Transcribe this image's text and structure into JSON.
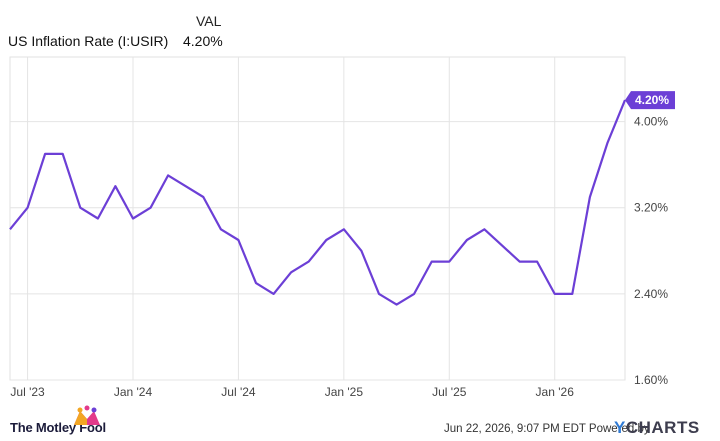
{
  "legend": {
    "column_header": "VAL",
    "series_name": "US Inflation Rate (I:USIR)",
    "series_value": "4.20%"
  },
  "chart_data": {
    "type": "line",
    "title": "",
    "xlabel": "",
    "ylabel": "",
    "x_tick_labels": [
      "Jul '23",
      "Jan '24",
      "Jul '24",
      "Jan '25",
      "Jul '25",
      "Jan '26"
    ],
    "y_tick_labels": [
      "1.60%",
      "2.40%",
      "3.20%",
      "4.00%"
    ],
    "y_ticks": [
      1.6,
      2.4,
      3.2,
      4.0
    ],
    "ylim": [
      1.6,
      4.6
    ],
    "grid": true,
    "axis_side": "right",
    "line_color": "#6c3fd6",
    "last_value_label": "4.20%",
    "series": [
      {
        "name": "US Inflation Rate (I:USIR)",
        "x": [
          "2023-06",
          "2023-07",
          "2023-08",
          "2023-09",
          "2023-10",
          "2023-11",
          "2023-12",
          "2024-01",
          "2024-02",
          "2024-03",
          "2024-04",
          "2024-05",
          "2024-06",
          "2024-07",
          "2024-08",
          "2024-09",
          "2024-10",
          "2024-11",
          "2024-12",
          "2025-01",
          "2025-02",
          "2025-03",
          "2025-04",
          "2025-05",
          "2025-06",
          "2025-07",
          "2025-08",
          "2025-09",
          "2025-10",
          "2025-11",
          "2025-12",
          "2026-01",
          "2026-02",
          "2026-03",
          "2026-04",
          "2026-05"
        ],
        "values": [
          3.0,
          3.2,
          3.7,
          3.7,
          3.2,
          3.1,
          3.4,
          3.1,
          3.2,
          3.5,
          3.4,
          3.3,
          3.0,
          2.9,
          2.5,
          2.4,
          2.6,
          2.7,
          2.9,
          3.0,
          2.8,
          2.4,
          2.3,
          2.4,
          2.7,
          2.7,
          2.9,
          3.0,
          2.85,
          2.7,
          2.7,
          2.4,
          2.4,
          3.3,
          3.8,
          4.2
        ]
      }
    ]
  },
  "footer": {
    "brand": "The Motley Fool",
    "timestamp": "Jun 22, 2026, 9:07 PM EDT Powered by",
    "provider_y": "Y",
    "provider_rest": "CHARTS"
  }
}
